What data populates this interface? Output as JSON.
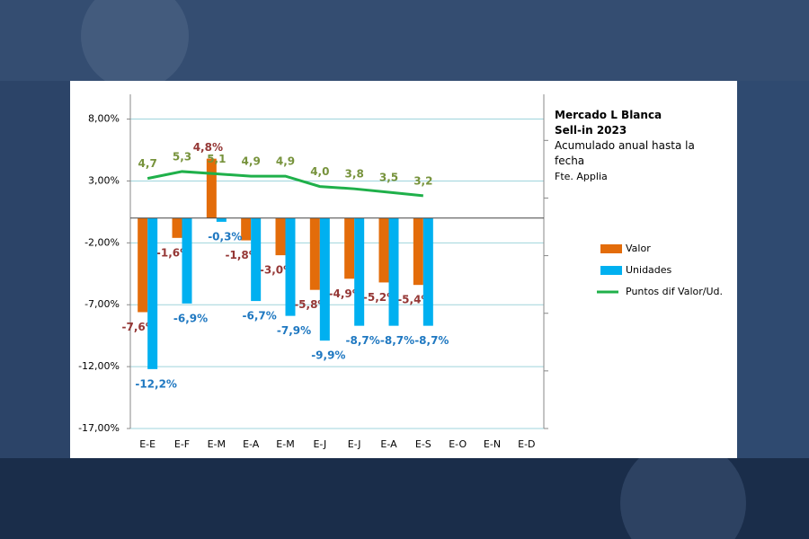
{
  "chart_data": {
    "type": "bar",
    "title": "Mercado L Blanca",
    "subtitle": "Sell-in 2023",
    "annotations": [
      "Acumulado anual hasta la fecha",
      "Fte. Applia"
    ],
    "categories": [
      "E-E",
      "E-F",
      "E-M",
      "E-A",
      "E-M",
      "E-J",
      "E-J",
      "E-A",
      "E-S",
      "E-O",
      "E-N",
      "E-D"
    ],
    "series": [
      {
        "name": "Valor",
        "color": "#e36c0a",
        "type": "bar",
        "values": [
          -7.6,
          -1.6,
          4.8,
          -1.8,
          -3.0,
          -5.8,
          -4.9,
          -5.2,
          -5.4,
          null,
          null,
          null
        ],
        "value_labels": [
          "-7,6%",
          "-1,6%",
          "4,8%",
          "-1,8%",
          "-3,0%",
          "-5,8%",
          "-4,9%",
          "-5,2%",
          "-5,4%",
          null,
          null,
          null
        ]
      },
      {
        "name": "Unidades",
        "color": "#00b0f0",
        "type": "bar",
        "values": [
          -12.2,
          -6.9,
          -0.3,
          -6.7,
          -7.9,
          -9.9,
          -8.7,
          -8.7,
          -8.7,
          null,
          null,
          null
        ],
        "value_labels": [
          "-12,2%",
          "-6,9%",
          "-0,3%",
          "-6,7%",
          "-7,9%",
          "-9,9%",
          "-8,7%",
          "-8,7%",
          "-8,7%",
          null,
          null,
          null
        ]
      },
      {
        "name": "Puntos dif Valor/Ud.",
        "color": "#1fb04a",
        "type": "line",
        "axis": "y2",
        "values": [
          4.7,
          5.3,
          5.1,
          4.9,
          4.9,
          4.0,
          3.8,
          3.5,
          3.2,
          null,
          null,
          null
        ],
        "value_labels": [
          "4,7",
          "5,3",
          "5,1",
          "4,9",
          "4,9",
          "4,0",
          "3,8",
          "3,5",
          "3,2",
          null,
          null,
          null
        ]
      }
    ],
    "ylim": [
      -17,
      10
    ],
    "yticks": [
      {
        "value": -17,
        "label": "-17,00%"
      },
      {
        "value": -12,
        "label": "-12,00%"
      },
      {
        "value": -7,
        "label": "-7,00%"
      },
      {
        "value": -2,
        "label": "-2,00%"
      },
      {
        "value": 3,
        "label": "3,00%"
      },
      {
        "value": 8,
        "label": "8,00%"
      }
    ],
    "y2lim": [
      -17,
      12
    ],
    "y2ticks": [
      -17,
      -12,
      -7,
      -2,
      3,
      8
    ],
    "grid": true,
    "legend": "right"
  }
}
